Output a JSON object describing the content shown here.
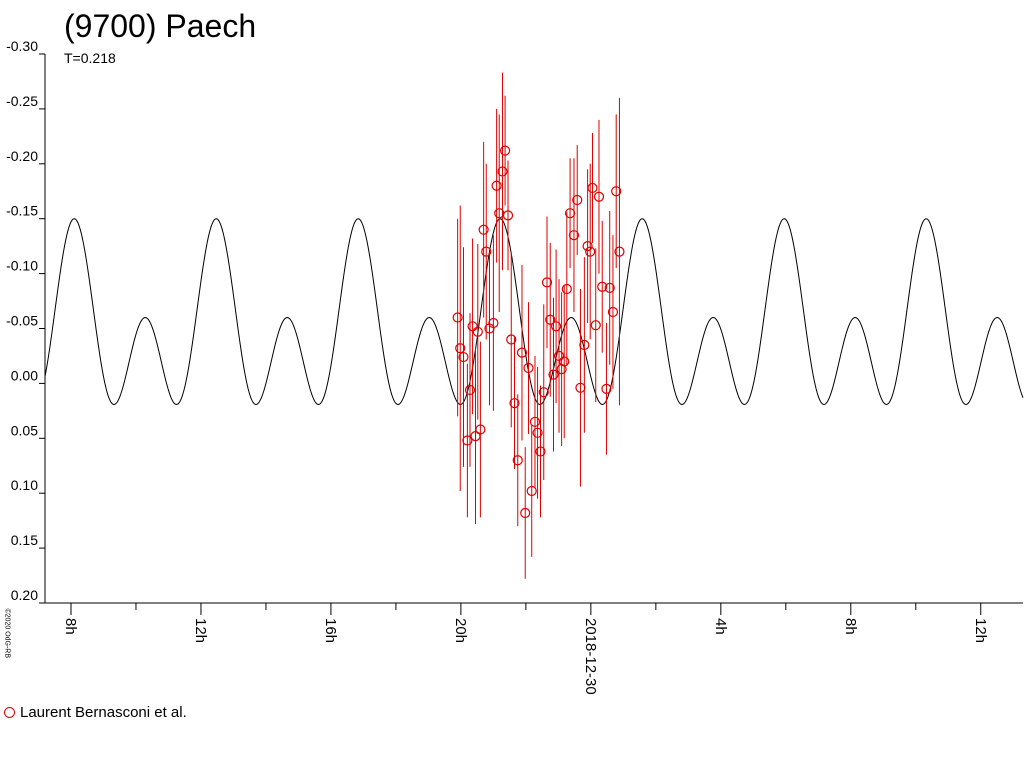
{
  "title": "(9700) Paech",
  "subtitle": "T=0.218",
  "copyright": "©2020 OdG-RB",
  "legend": {
    "label": "Laurent Bernasconi et al."
  },
  "colors": {
    "observations": "#dd0000",
    "model_curve": "#000000",
    "axis": "#000000"
  },
  "chart_data": {
    "type": "scatter",
    "title": "(9700) Paech",
    "subtitle": "T=0.218",
    "ylim": [
      0.2,
      -0.3
    ],
    "y_ticks": [
      "-0.30",
      "-0.25",
      "-0.20",
      "-0.15",
      "-0.10",
      "-0.05",
      "0.00",
      "0.05",
      "0.10",
      "0.15",
      "0.20"
    ],
    "y_tick_values": [
      -0.3,
      -0.25,
      -0.2,
      -0.15,
      -0.1,
      -0.05,
      0.0,
      0.05,
      0.1,
      0.15,
      0.2
    ],
    "xlim_hours": [
      7.2,
      37.3
    ],
    "x_ticks": [
      {
        "label": "8h",
        "hour": 8
      },
      {
        "label": "12h",
        "hour": 12
      },
      {
        "label": "16h",
        "hour": 16
      },
      {
        "label": "20h",
        "hour": 20
      },
      {
        "label": "2018-12-30",
        "hour": 24
      },
      {
        "label": "4h",
        "hour": 28
      },
      {
        "label": "8h",
        "hour": 32
      },
      {
        "label": "12h",
        "hour": 36
      }
    ],
    "minor_tick_hours": [
      10,
      14,
      18,
      22,
      26,
      30,
      34
    ],
    "model_curve": {
      "period_hours": 4.37,
      "phase_hours": 8.1,
      "mean": -0.045,
      "harmonics": [
        {
          "k": 1,
          "a": 0.045,
          "phi": 0.0
        },
        {
          "k": 2,
          "a": 0.06,
          "phi": 0.0
        }
      ]
    },
    "series": [
      {
        "name": "Laurent Bernasconi et al.",
        "points": [
          {
            "hour": 19.9,
            "y": -0.06,
            "err": 0.09
          },
          {
            "hour": 19.98,
            "y": -0.032,
            "err": 0.13
          },
          {
            "hour": 20.08,
            "y": -0.024,
            "err": 0.1
          },
          {
            "hour": 20.2,
            "y": 0.052,
            "err": 0.07
          },
          {
            "hour": 20.28,
            "y": 0.006,
            "err": 0.07
          },
          {
            "hour": 20.36,
            "y": -0.052,
            "err": 0.08
          },
          {
            "hour": 20.45,
            "y": 0.048,
            "err": 0.08
          },
          {
            "hour": 20.52,
            "y": -0.047,
            "err": 0.08
          },
          {
            "hour": 20.6,
            "y": 0.042,
            "err": 0.08
          },
          {
            "hour": 20.7,
            "y": -0.14,
            "err": 0.08
          },
          {
            "hour": 20.78,
            "y": -0.12,
            "err": 0.08
          },
          {
            "hour": 20.88,
            "y": -0.05,
            "err": 0.07
          },
          {
            "hour": 21.0,
            "y": -0.055,
            "err": 0.08
          },
          {
            "hour": 21.1,
            "y": -0.18,
            "err": 0.07
          },
          {
            "hour": 21.18,
            "y": -0.155,
            "err": 0.09
          },
          {
            "hour": 21.28,
            "y": -0.193,
            "err": 0.09
          },
          {
            "hour": 21.36,
            "y": -0.212,
            "err": 0.05
          },
          {
            "hour": 21.45,
            "y": -0.153,
            "err": 0.05
          },
          {
            "hour": 21.55,
            "y": -0.04,
            "err": 0.08
          },
          {
            "hour": 21.65,
            "y": 0.018,
            "err": 0.06
          },
          {
            "hour": 21.75,
            "y": 0.07,
            "err": 0.06
          },
          {
            "hour": 21.88,
            "y": -0.028,
            "err": 0.08
          },
          {
            "hour": 21.98,
            "y": 0.118,
            "err": 0.06
          },
          {
            "hour": 22.08,
            "y": -0.014,
            "err": 0.06
          },
          {
            "hour": 22.18,
            "y": 0.098,
            "err": 0.06
          },
          {
            "hour": 22.28,
            "y": 0.035,
            "err": 0.06
          },
          {
            "hour": 22.36,
            "y": 0.045,
            "err": 0.06
          },
          {
            "hour": 22.45,
            "y": 0.062,
            "err": 0.06
          },
          {
            "hour": 22.55,
            "y": 0.008,
            "err": 0.08
          },
          {
            "hour": 22.65,
            "y": -0.092,
            "err": 0.06
          },
          {
            "hour": 22.75,
            "y": -0.058,
            "err": 0.07
          },
          {
            "hour": 22.85,
            "y": -0.008,
            "err": 0.07
          },
          {
            "hour": 22.93,
            "y": -0.052,
            "err": 0.07
          },
          {
            "hour": 23.02,
            "y": -0.025,
            "err": 0.07
          },
          {
            "hour": 23.1,
            "y": -0.013,
            "err": 0.07
          },
          {
            "hour": 23.18,
            "y": -0.02,
            "err": 0.07
          },
          {
            "hour": 23.26,
            "y": -0.086,
            "err": 0.07
          },
          {
            "hour": 23.36,
            "y": -0.155,
            "err": 0.05
          },
          {
            "hour": 23.48,
            "y": -0.135,
            "err": 0.07
          },
          {
            "hour": 23.58,
            "y": -0.167,
            "err": 0.05
          },
          {
            "hour": 23.68,
            "y": 0.004,
            "err": 0.09
          },
          {
            "hour": 23.8,
            "y": -0.035,
            "err": 0.08
          },
          {
            "hour": 23.9,
            "y": -0.125,
            "err": 0.07
          },
          {
            "hour": 23.98,
            "y": -0.12,
            "err": 0.08
          },
          {
            "hour": 24.05,
            "y": -0.178,
            "err": 0.05
          },
          {
            "hour": 24.15,
            "y": -0.053,
            "err": 0.07
          },
          {
            "hour": 24.25,
            "y": -0.17,
            "err": 0.07
          },
          {
            "hour": 24.35,
            "y": -0.088,
            "err": 0.06
          },
          {
            "hour": 24.48,
            "y": 0.005,
            "err": 0.06
          },
          {
            "hour": 24.58,
            "y": -0.087,
            "err": 0.07
          },
          {
            "hour": 24.68,
            "y": -0.065,
            "err": 0.07
          },
          {
            "hour": 24.78,
            "y": -0.175,
            "err": 0.07
          },
          {
            "hour": 24.88,
            "y": -0.12,
            "err": 0.14
          }
        ]
      }
    ]
  }
}
